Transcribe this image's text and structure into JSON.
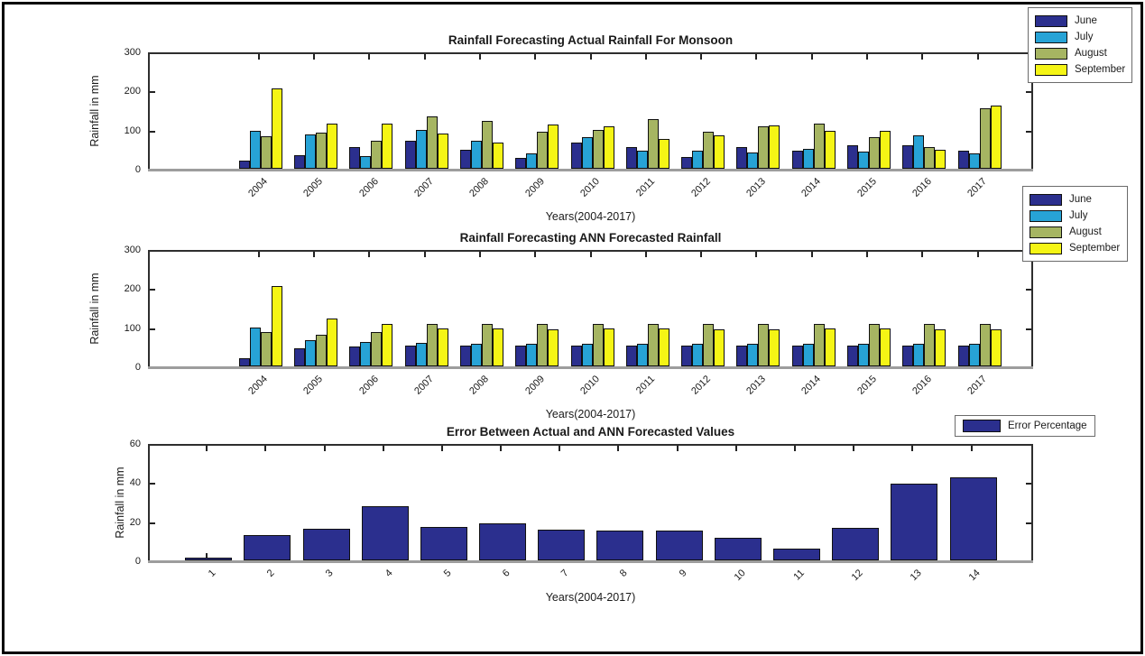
{
  "figure": {
    "background": "#ffffff",
    "border_color": "#000000",
    "axis_color": "#2e2e2e",
    "baseline_color": "#9d9d9d"
  },
  "chart_data": [
    {
      "type": "bar",
      "title": "Rainfall Forecasting Actual Rainfall For Monsoon",
      "xlabel": "Years(2004-2017)",
      "ylabel": "Rainfall in mm",
      "ylim": [
        0,
        300
      ],
      "yticks": [
        0,
        100,
        200,
        300
      ],
      "grid": false,
      "legend_position": "top-right",
      "categories": [
        "2004",
        "2005",
        "2006",
        "2007",
        "2008",
        "2009",
        "2010",
        "2011",
        "2012",
        "2013",
        "2014",
        "2015",
        "2016",
        "2017"
      ],
      "series": [
        {
          "name": "June",
          "color": "#2B2F8E",
          "values": [
            21,
            35,
            56,
            73,
            50,
            27,
            69,
            56,
            31,
            56,
            48,
            62,
            62,
            48
          ]
        },
        {
          "name": "July",
          "color": "#27A3D6",
          "values": [
            98,
            89,
            33,
            100,
            72,
            40,
            81,
            46,
            47,
            43,
            51,
            45,
            87,
            41
          ]
        },
        {
          "name": "August",
          "color": "#A6B562",
          "values": [
            85,
            94,
            73,
            136,
            125,
            95,
            101,
            130,
            96,
            110,
            117,
            82,
            56,
            158
          ]
        },
        {
          "name": "September",
          "color": "#F5F515",
          "values": [
            208,
            118,
            117,
            91,
            69,
            115,
            110,
            78,
            86,
            113,
            99,
            99,
            50,
            164
          ]
        }
      ]
    },
    {
      "type": "bar",
      "title": "Rainfall Forecasting ANN Forecasted Rainfall",
      "xlabel": "Years(2004-2017)",
      "ylabel": "Rainfall in mm",
      "ylim": [
        0,
        300
      ],
      "yticks": [
        0,
        100,
        200,
        300
      ],
      "grid": false,
      "legend_position": "top-right",
      "categories": [
        "2004",
        "2005",
        "2006",
        "2007",
        "2008",
        "2009",
        "2010",
        "2011",
        "2012",
        "2013",
        "2014",
        "2015",
        "2016",
        "2017"
      ],
      "series": [
        {
          "name": "June",
          "color": "#2B2F8E",
          "values": [
            20,
            46,
            51,
            53,
            53,
            54,
            53,
            53,
            53,
            53,
            53,
            53,
            53,
            53
          ]
        },
        {
          "name": "July",
          "color": "#27A3D6",
          "values": [
            101,
            68,
            63,
            60,
            59,
            59,
            59,
            59,
            59,
            59,
            59,
            59,
            59,
            59
          ]
        },
        {
          "name": "August",
          "color": "#A6B562",
          "values": [
            88,
            83,
            90,
            109,
            111,
            110,
            110,
            110,
            110,
            110,
            109,
            110,
            110,
            109
          ]
        },
        {
          "name": "September",
          "color": "#F5F515",
          "values": [
            208,
            124,
            110,
            98,
            98,
            97,
            98,
            98,
            97,
            97,
            98,
            98,
            97,
            97
          ]
        }
      ]
    },
    {
      "type": "bar",
      "title": "Error Between Actual and ANN Forecasted Values",
      "xlabel": "Years(2004-2017)",
      "ylabel": "Rainfall in mm",
      "ylim": [
        0,
        60
      ],
      "yticks": [
        0,
        20,
        40,
        60
      ],
      "grid": false,
      "legend_position": "top-right",
      "categories": [
        "1",
        "2",
        "3",
        "4",
        "5",
        "6",
        "7",
        "8",
        "9",
        "10",
        "11",
        "12",
        "13",
        "14"
      ],
      "series": [
        {
          "name": "Error Percentage",
          "color": "#2B2F8E",
          "values": [
            1.5,
            13,
            16.5,
            28,
            17.5,
            19,
            16,
            15.5,
            15.5,
            11.5,
            6,
            17,
            40,
            43
          ]
        }
      ]
    }
  ]
}
